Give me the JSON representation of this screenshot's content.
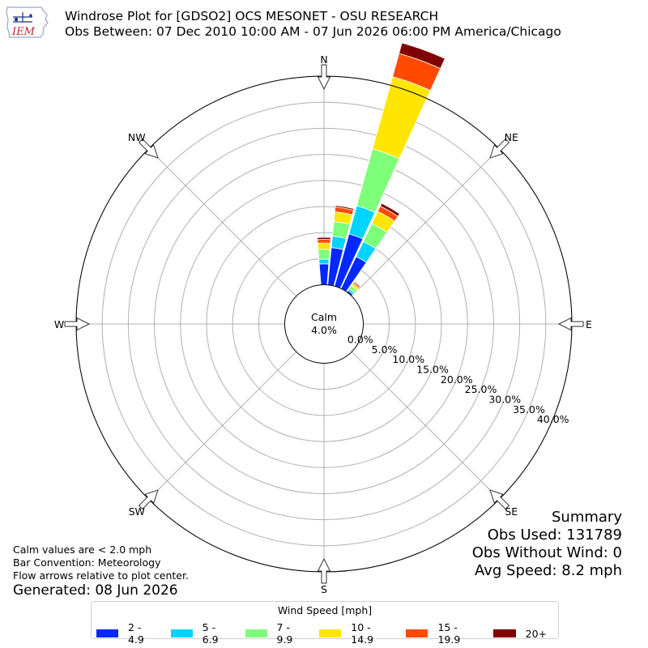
{
  "title": {
    "line1": "Windrose Plot for [GDSO2] OCS MESONET - OSU RESEARCH",
    "line2": "Obs Between: 07 Dec 2010 10:00 AM - 07 Jun 2026 06:00 PM America/Chicago"
  },
  "logo": {
    "text": "IEM",
    "icon": "iowa-state-outline-icon"
  },
  "notes": {
    "calm": "Calm values are < 2.0 mph",
    "convention": "Bar Convention: Meteorology",
    "arrows": "Flow arrows relative to plot center.",
    "generated": "Generated: 08 Jun 2026"
  },
  "summary": {
    "title": "Summary",
    "obs_used": "Obs Used: 131789",
    "obs_without_wind": "Obs Without Wind: 0",
    "avg_speed": "Avg Speed: 8.2 mph"
  },
  "chart_data": {
    "type": "windrose",
    "directions": [
      "N",
      "NE",
      "E",
      "SE",
      "S",
      "SW",
      "W",
      "NW"
    ],
    "calm": {
      "label": "Calm",
      "value": "4.0%",
      "percent": 4.0
    },
    "radial_ticks": [
      "0.0%",
      "5.0%",
      "10.0%",
      "15.0%",
      "20.0%",
      "25.0%",
      "30.0%",
      "35.0%",
      "40.0%"
    ],
    "rlim": [
      0,
      40
    ],
    "legend": {
      "title": "Wind Speed [mph]",
      "placement": "bottom-center",
      "entries": [
        {
          "label": "2 - 4.9",
          "color": "#0028ff"
        },
        {
          "label": "5 - 6.9",
          "color": "#00d4ff"
        },
        {
          "label": "7 - 9.9",
          "color": "#7dff7a"
        },
        {
          "label": "10 - 14.9",
          "color": "#ffe600"
        },
        {
          "label": "15 - 19.9",
          "color": "#ff4a00"
        },
        {
          "label": "20+",
          "color": "#800000"
        }
      ]
    },
    "sectors": [
      {
        "direction_deg": 0,
        "values": [
          4.0,
          0.9,
          1.9,
          1.2,
          0.7,
          0.4
        ]
      },
      {
        "direction_deg": 10,
        "values": [
          7.2,
          2.2,
          2.8,
          1.9,
          0.9,
          0.3
        ]
      },
      {
        "direction_deg": 20,
        "values": [
          10.4,
          5.6,
          11.3,
          14.4,
          4.6,
          2.1
        ]
      },
      {
        "direction_deg": 30,
        "values": [
          6.8,
          3.2,
          3.8,
          2.6,
          1.1,
          0.6
        ]
      },
      {
        "direction_deg": 40,
        "values": [
          0.4,
          0.4,
          0.7,
          0.5,
          0.3,
          0.2
        ]
      }
    ]
  }
}
